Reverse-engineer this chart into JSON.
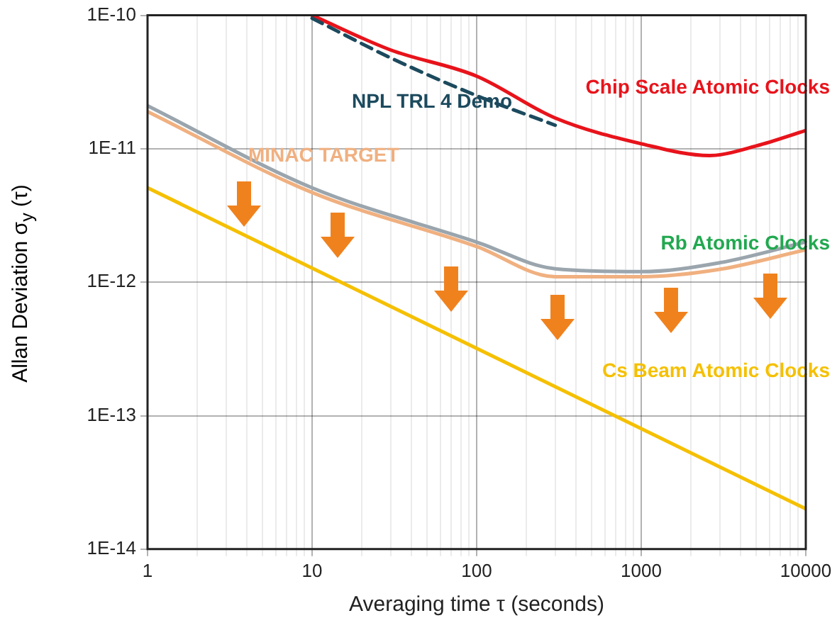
{
  "chart_data": {
    "type": "line",
    "xlabel": "Averaging time τ (seconds)",
    "ylabel": "Allan Deviation σ$_{y}$ (τ)",
    "log": "xy",
    "grid": true,
    "legend": false,
    "marker": "none",
    "xlim": [
      1,
      10000
    ],
    "ylim": [
      1e-14,
      1e-10
    ],
    "xticks": [
      1,
      {
        "value": 2,
        "label": null
      },
      {
        "value": 3,
        "label": null
      },
      {
        "value": 4,
        "label": null
      },
      {
        "value": 5,
        "label": null
      },
      {
        "value": 6,
        "label": null
      },
      {
        "value": 7,
        "label": null
      },
      {
        "value": 8,
        "label": null
      },
      {
        "value": 9,
        "label": null
      },
      10,
      {
        "value": 20,
        "label": null
      },
      {
        "value": 30,
        "label": null
      },
      {
        "value": 40,
        "label": null
      },
      {
        "value": 50,
        "label": null
      },
      {
        "value": 60,
        "label": null
      },
      {
        "value": 70,
        "label": null
      },
      {
        "value": 80,
        "label": null
      },
      {
        "value": 90,
        "label": null
      },
      100,
      {
        "value": 200,
        "label": null
      },
      {
        "value": 300,
        "label": null
      },
      {
        "value": 400,
        "label": null
      },
      {
        "value": 500,
        "label": null
      },
      {
        "value": 600,
        "label": null
      },
      {
        "value": 700,
        "label": null
      },
      {
        "value": 800,
        "label": null
      },
      {
        "value": 900,
        "label": null
      },
      1000,
      {
        "value": 2000,
        "label": null
      },
      {
        "value": 3000,
        "label": null
      },
      {
        "value": 4000,
        "label": null
      },
      {
        "value": 5000,
        "label": null
      },
      {
        "value": 6000,
        "label": null
      },
      {
        "value": 7000,
        "label": null
      },
      {
        "value": 8000,
        "label": null
      },
      {
        "value": 9000,
        "label": null
      },
      10000
    ],
    "yticks": [
      {
        "value": 1e-14,
        "label": "1E-14"
      },
      {
        "value": 1e-13,
        "label": "1E-13"
      },
      {
        "value": 1e-12,
        "label": "1E-12"
      },
      {
        "value": 1e-11,
        "label": "1E-11"
      },
      {
        "value": 1e-10,
        "label": "1E-10"
      }
    ],
    "series": [
      {
        "name": "Chip Scale Atomic Clocks",
        "color": "#e8131b",
        "x": [
          10,
          30,
          100,
          300,
          1000,
          2600,
          5000,
          10000
        ],
        "values": [
          1e-10,
          5.5e-11,
          3.5e-11,
          1.7e-11,
          1.09e-11,
          8.9e-12,
          1.05e-11,
          1.37e-11
        ]
      },
      {
        "name": "NPL TRL 4 Demo",
        "color": "#1c4a5e",
        "line_style": "dashed",
        "x": [
          10,
          30,
          100,
          300
        ],
        "values": [
          9.5e-11,
          4.8e-11,
          2.5e-11,
          1.5e-11
        ]
      },
      {
        "name": "Rb Atomic Clocks",
        "color": "#9aa5ad",
        "x": [
          1,
          10,
          100,
          300,
          1000,
          3000,
          10000
        ],
        "values": [
          2.1e-11,
          5.1e-12,
          2e-12,
          1.26e-12,
          1.2e-12,
          1.4e-12,
          2e-12
        ]
      },
      {
        "name": "MINAC TARGET",
        "color": "#f0b080",
        "x": [
          1,
          10,
          100,
          300,
          1000,
          3000,
          10000
        ],
        "values": [
          1.9e-11,
          4.7e-12,
          1.85e-12,
          1.1e-12,
          1.1e-12,
          1.25e-12,
          1.75e-12
        ]
      },
      {
        "name": "Cs Beam Atomic Clocks",
        "color": "#f5c000",
        "x": [
          1,
          10000
        ],
        "values": [
          5.1e-12,
          2e-14
        ]
      }
    ]
  }
}
